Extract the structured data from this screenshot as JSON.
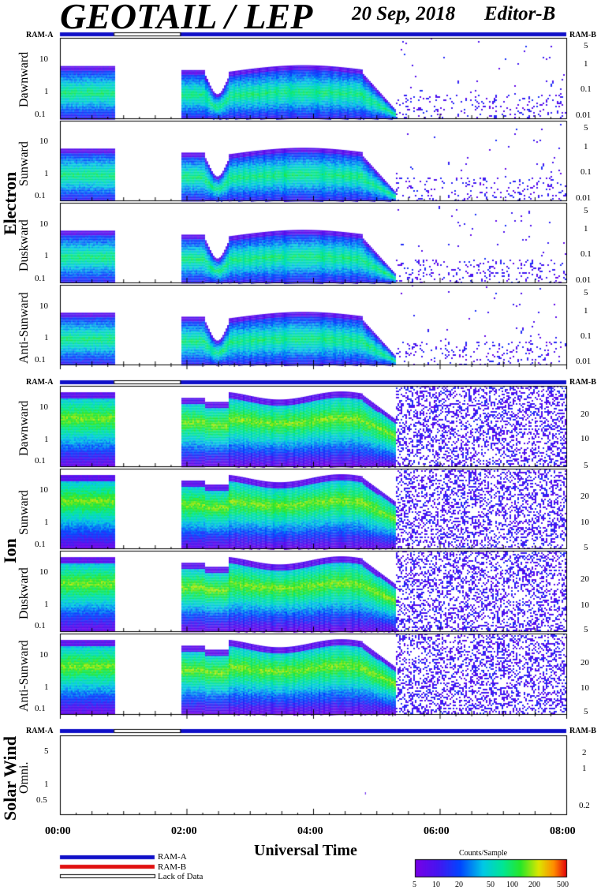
{
  "header": {
    "title": "GEOTAIL / LEP",
    "date": "20 Sep, 2018",
    "editor": "Editor-B"
  },
  "groups": {
    "electron": "Electron",
    "ion": "Ion",
    "solar_wind": "Solar Wind"
  },
  "ram": {
    "a": "RAM-A",
    "b": "RAM-B"
  },
  "panels": {
    "e_dawn": "Dawnward",
    "e_sun": "Sunward",
    "e_dusk": "Duskward",
    "e_anti": "Anti-Sunward",
    "i_dawn": "Dawnward",
    "i_sun": "Sunward",
    "i_dusk": "Duskward",
    "i_anti": "Anti-Sunward",
    "sw": "Omni."
  },
  "left_ticks": {
    "t10": "10",
    "t1": "1",
    "t01": "0.1",
    "sw5": "5",
    "sw1": "1",
    "sw05": "0.5"
  },
  "right_ticks": {
    "e5": "5",
    "e1": "1",
    "e01": "0.1",
    "e001": "0.01",
    "i20": "20",
    "i10": "10",
    "i5": "5",
    "sw2": "2",
    "sw1": "1",
    "sw02": "0.2"
  },
  "x_axis": {
    "label": "Universal Time",
    "ticks": [
      "00:00",
      "02:00",
      "04:00",
      "06:00",
      "08:00"
    ]
  },
  "legend": {
    "ram_a": "RAM-A",
    "ram_b": "RAM-B",
    "lack": "Lack of Data"
  },
  "colorbar": {
    "title": "Counts/Sample",
    "ticks": [
      "5",
      "10",
      "20",
      "50",
      "100",
      "200",
      "500"
    ]
  },
  "colors": {
    "ram_a": "#1010c8",
    "ram_b": "#e01010",
    "lack": "#ffffff"
  },
  "chart_data": {
    "type": "heatmap",
    "title": "GEOTAIL / LEP",
    "xlabel": "Universal Time",
    "x_range_hours": [
      0,
      8
    ],
    "panels": [
      "Electron Dawnward",
      "Electron Sunward",
      "Electron Duskward",
      "Electron Anti-Sunward",
      "Ion Dawnward",
      "Ion Sunward",
      "Ion Duskward",
      "Ion Anti-Sunward",
      "Solar Wind Omni."
    ],
    "data_gap_hours": [
      0.85,
      1.9
    ],
    "plasma_region_end_hours": 5.3,
    "colorbar_range": [
      5,
      500
    ],
    "colorbar_scale": "log"
  }
}
